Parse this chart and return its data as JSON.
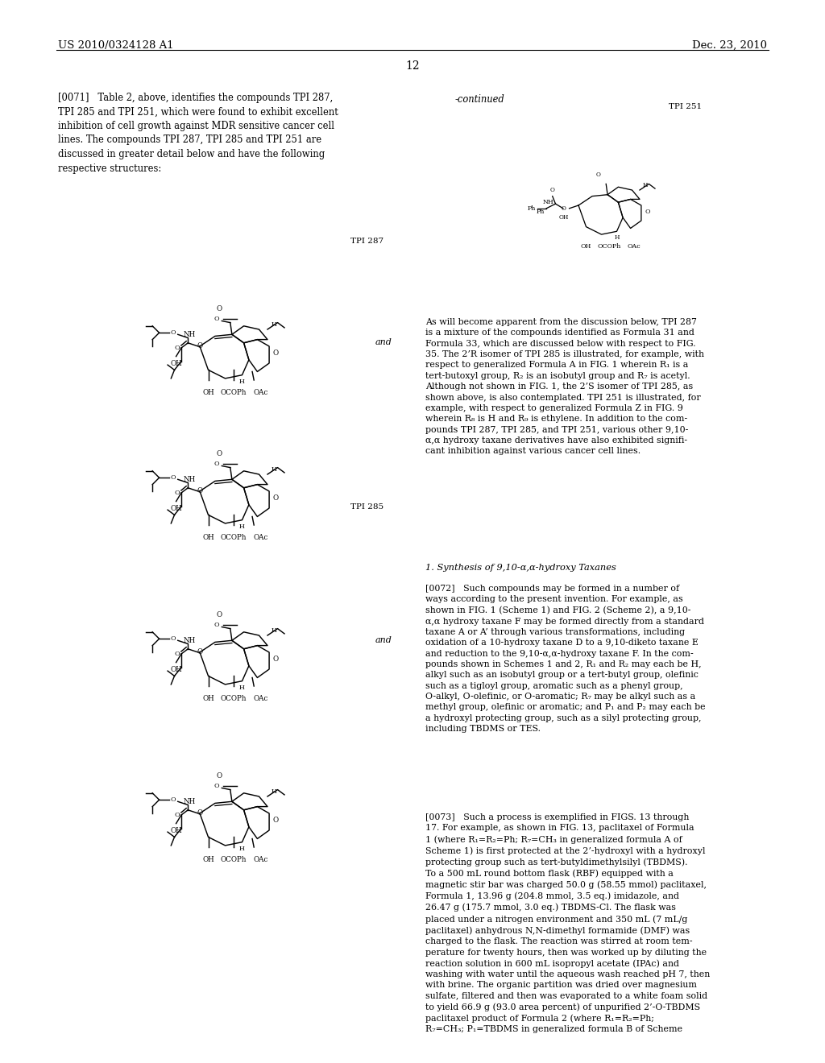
{
  "page_number": "12",
  "header_left": "US 2010/0324128 A1",
  "header_right": "Dec. 23, 2010",
  "background_color": "#ffffff",
  "text_color": "#000000",
  "body_text_left": "[0071]   Table 2, above, identifies the compounds TPI 287,\nTPI 285 and TPI 251, which were found to exhibit excellent\ninhibition of cell growth against MDR sensitive cancer cell\nlines. The compounds TPI 287, TPI 285 and TPI 251 are\ndiscussed in greater detail below and have the following\nrespective structures:",
  "continued_label": "-continued",
  "tpi251_label": "TPI 251",
  "tpi287_label": "TPI 287",
  "tpi285_label": "TPI 285",
  "and_label": "and",
  "body_text_right_para1": "As will become apparent from the discussion below, TPI 287\nis a mixture of the compounds identified as Formula 31 and\nFormula 33, which are discussed below with respect to FIG.\n35. The 2’R isomer of TPI 285 is illustrated, for example, with\nrespect to generalized Formula A in FIG. 1 wherein R₁ is a\ntert-butoxyl group, R₂ is an isobutyl group and R₇ is acetyl.\nAlthough not shown in FIG. 1, the 2’S isomer of TPI 285, as\nshown above, is also contemplated. TPI 251 is illustrated, for\nexample, with respect to generalized Formula Z in FIG. 9\nwherein R₈ is H and R₉ is ethylene. In addition to the com-\npounds TPI 287, TPI 285, and TPI 251, various other 9,10-\nα,α hydroxy taxane derivatives have also exhibited signifi-\ncant inhibition against various cancer cell lines.",
  "section_header": "1. Synthesis of 9,10-α,α-hydroxy Taxanes",
  "body_text_right_para2": "[0072]   Such compounds may be formed in a number of\nways according to the present invention. For example, as\nshown in FIG. 1 (Scheme 1) and FIG. 2 (Scheme 2), a 9,10-\nα,α hydroxy taxane F may be formed directly from a standard\ntaxane A or A’ through various transformations, including\noxidation of a 10-hydroxy taxane D to a 9,10-diketo taxane E\nand reduction to the 9,10-α,α-hydroxy taxane F. In the com-\npounds shown in Schemes 1 and 2, R₁ and R₂ may each be H,\nalkyl such as an isobutyl group or a tert-butyl group, olefinic\nsuch as a tigloyl group, aromatic such as a phenyl group,\nO-alkyl, O-olefinic, or O-aromatic; R₇ may be alkyl such as a\nmethyl group, olefinic or aromatic; and P₁ and P₂ may each be\na hydroxyl protecting group, such as a silyl protecting group,\nincluding TBDMS or TES.",
  "body_text_right_para3": "[0073]   Such a process is exemplified in FIGS. 13 through\n17. For example, as shown in FIG. 13, paclitaxel of Formula\n1 (where R₁=R₂=Ph; R₇=CH₃ in generalized formula A of\nScheme 1) is first protected at the 2’-hydroxyl with a hydroxyl\nprotecting group such as tert-butyldimethylsilyl (TBDMS).\nTo a 500 mL round bottom flask (RBF) equipped with a\nmagnetic stir bar was charged 50.0 g (58.55 mmol) paclitaxel,\nFormula 1, 13.96 g (204.8 mmol, 3.5 eq.) imidazole, and\n26.47 g (175.7 mmol, 3.0 eq.) TBDMS-Cl. The flask was\nplaced under a nitrogen environment and 350 mL (7 mL/g\npaclitaxel) anhydrous N,N-dimethyl formamide (DMF) was\ncharged to the flask. The reaction was stirred at room tem-\nperature for twenty hours, then was worked up by diluting the\nreaction solution in 600 mL isopropyl acetate (IPAc) and\nwashing with water until the aqueous wash reached pH 7, then\nwith brine. The organic partition was dried over magnesium\nsulfate, filtered and then was evaporated to a white foam solid\nto yield 66.9 g (93.0 area percent) of unpurified 2’-O-TBDMS\npaclitaxel product of Formula 2 (where R₁=R₂=Ph;\nR₇=CH₃; P₁=TBDMS in generalized formula B of Scheme"
}
